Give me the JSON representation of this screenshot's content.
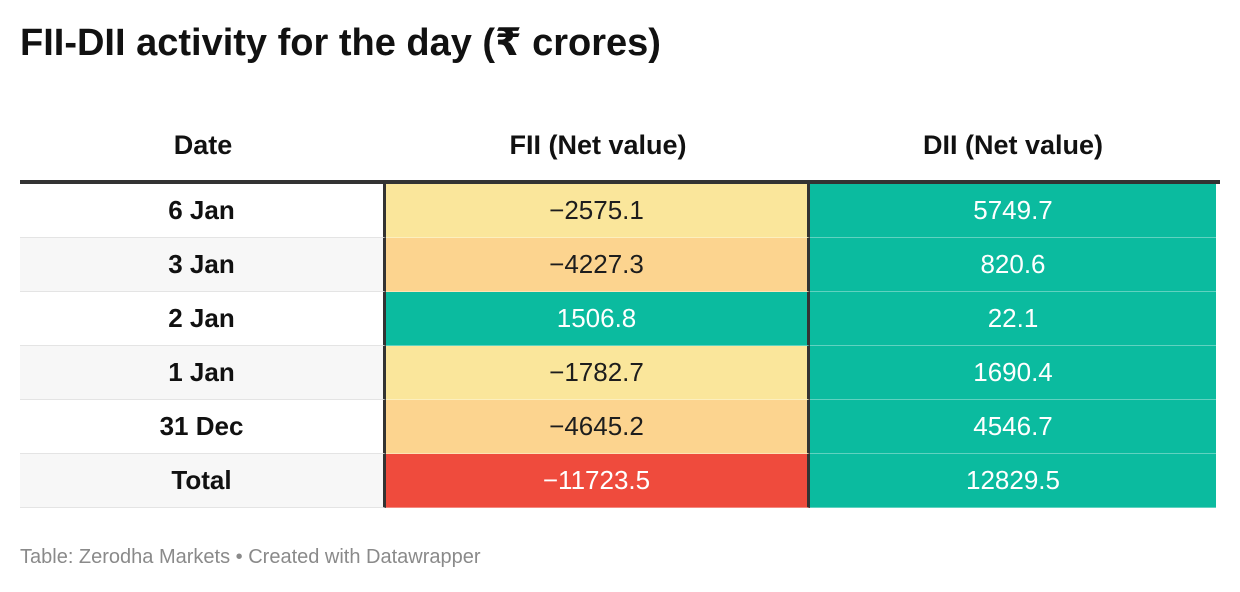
{
  "title": "FII-DII activity for the day (₹ crores)",
  "chart_data": {
    "type": "table",
    "columns": [
      "Date",
      "FII (Net value)",
      "DII (Net value)"
    ],
    "rows": [
      {
        "date": "6 Jan",
        "fii": "−2575.1",
        "dii": "5749.7",
        "fii_color": "#fae69b",
        "fii_text": "#1d1d1d",
        "dii_color": "#0bbb9f"
      },
      {
        "date": "3 Jan",
        "fii": "−4227.3",
        "dii": "820.6",
        "fii_color": "#fcd48f",
        "fii_text": "#1d1d1d",
        "dii_color": "#0bbb9f"
      },
      {
        "date": "2 Jan",
        "fii": "1506.8",
        "dii": "22.1",
        "fii_color": "#0bbb9f",
        "fii_text": "#ffffff",
        "dii_color": "#0bbb9f"
      },
      {
        "date": "1 Jan",
        "fii": "−1782.7",
        "dii": "1690.4",
        "fii_color": "#fae69b",
        "fii_text": "#1d1d1d",
        "dii_color": "#0bbb9f"
      },
      {
        "date": "31 Dec",
        "fii": "−4645.2",
        "dii": "4546.7",
        "fii_color": "#fcd48f",
        "fii_text": "#1d1d1d",
        "dii_color": "#0bbb9f"
      },
      {
        "date": "Total",
        "fii": "−11723.5",
        "dii": "12829.5",
        "fii_color": "#ef4b3d",
        "fii_text": "#ffffff",
        "dii_color": "#0bbb9f"
      }
    ]
  },
  "footer": "Table: Zerodha Markets • Created with Datawrapper"
}
